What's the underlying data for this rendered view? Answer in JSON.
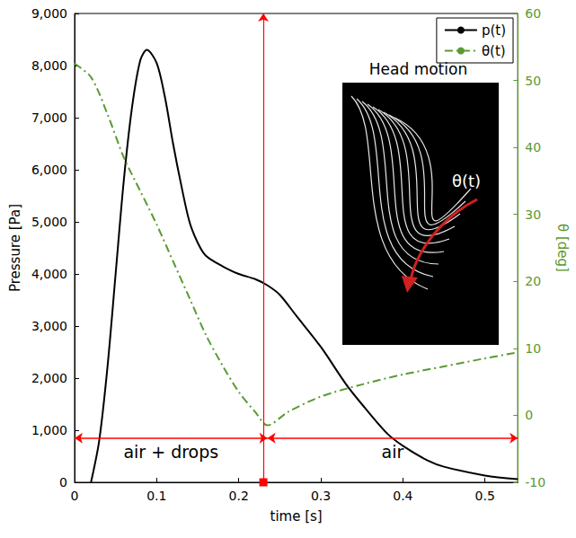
{
  "chart_data": {
    "type": "line",
    "x_label": "time [s]",
    "y_label": "Pressure [Pa]",
    "y2_label": "θ [deg]",
    "xlim": [
      0,
      0.54
    ],
    "xticks": [
      0,
      0.1,
      0.2,
      0.3,
      0.4,
      0.5
    ],
    "ylim": [
      0,
      9000
    ],
    "yticks": [
      0,
      1000,
      2000,
      3000,
      4000,
      5000,
      6000,
      7000,
      8000,
      9000
    ],
    "y2lim": [
      -10,
      60
    ],
    "y2ticks": [
      -10,
      0,
      10,
      20,
      30,
      40,
      50,
      60
    ],
    "grid": false,
    "legend": "top-right",
    "series": [
      {
        "name": "p(t)",
        "color": "#000000",
        "line_style": "solid",
        "axis": "y",
        "x": [
          0.02,
          0.03,
          0.04,
          0.05,
          0.06,
          0.07,
          0.08,
          0.088,
          0.1,
          0.11,
          0.12,
          0.13,
          0.14,
          0.15,
          0.16,
          0.18,
          0.2,
          0.22,
          0.235,
          0.25,
          0.27,
          0.3,
          0.33,
          0.35,
          0.38,
          0.4,
          0.43,
          0.45,
          0.5,
          0.54
        ],
        "values": [
          0,
          800,
          2200,
          4000,
          5800,
          7200,
          8100,
          8300,
          8050,
          7400,
          6500,
          5700,
          5000,
          4600,
          4350,
          4150,
          4000,
          3900,
          3780,
          3600,
          3200,
          2600,
          1900,
          1500,
          950,
          700,
          420,
          300,
          130,
          60
        ]
      },
      {
        "name": "θ(t)",
        "color": "#5a9a32",
        "line_style": "dashdot",
        "axis": "y2",
        "x": [
          0,
          0.02,
          0.04,
          0.06,
          0.08,
          0.1,
          0.12,
          0.14,
          0.16,
          0.18,
          0.2,
          0.22,
          0.235,
          0.26,
          0.3,
          0.35,
          0.4,
          0.45,
          0.5,
          0.54
        ],
        "values": [
          52.5,
          50.5,
          45,
          38.5,
          33.5,
          28.5,
          23,
          17.5,
          12,
          7.5,
          3.5,
          0.5,
          -1.5,
          0.5,
          2.8,
          4.6,
          6.1,
          7.3,
          8.5,
          9.4
        ]
      }
    ],
    "annotations": [
      {
        "type": "vline",
        "x": 0.235,
        "color": "#ff0000"
      },
      {
        "type": "span",
        "text": "air + drops",
        "x": [
          0,
          0.235
        ],
        "y": 850,
        "color": "#ff0000"
      },
      {
        "type": "span",
        "text": "air",
        "x": [
          0.235,
          0.54
        ],
        "y": 850,
        "color": "#ff0000"
      },
      {
        "type": "inset",
        "title": "Head motion",
        "text": "θ(t)"
      }
    ]
  }
}
